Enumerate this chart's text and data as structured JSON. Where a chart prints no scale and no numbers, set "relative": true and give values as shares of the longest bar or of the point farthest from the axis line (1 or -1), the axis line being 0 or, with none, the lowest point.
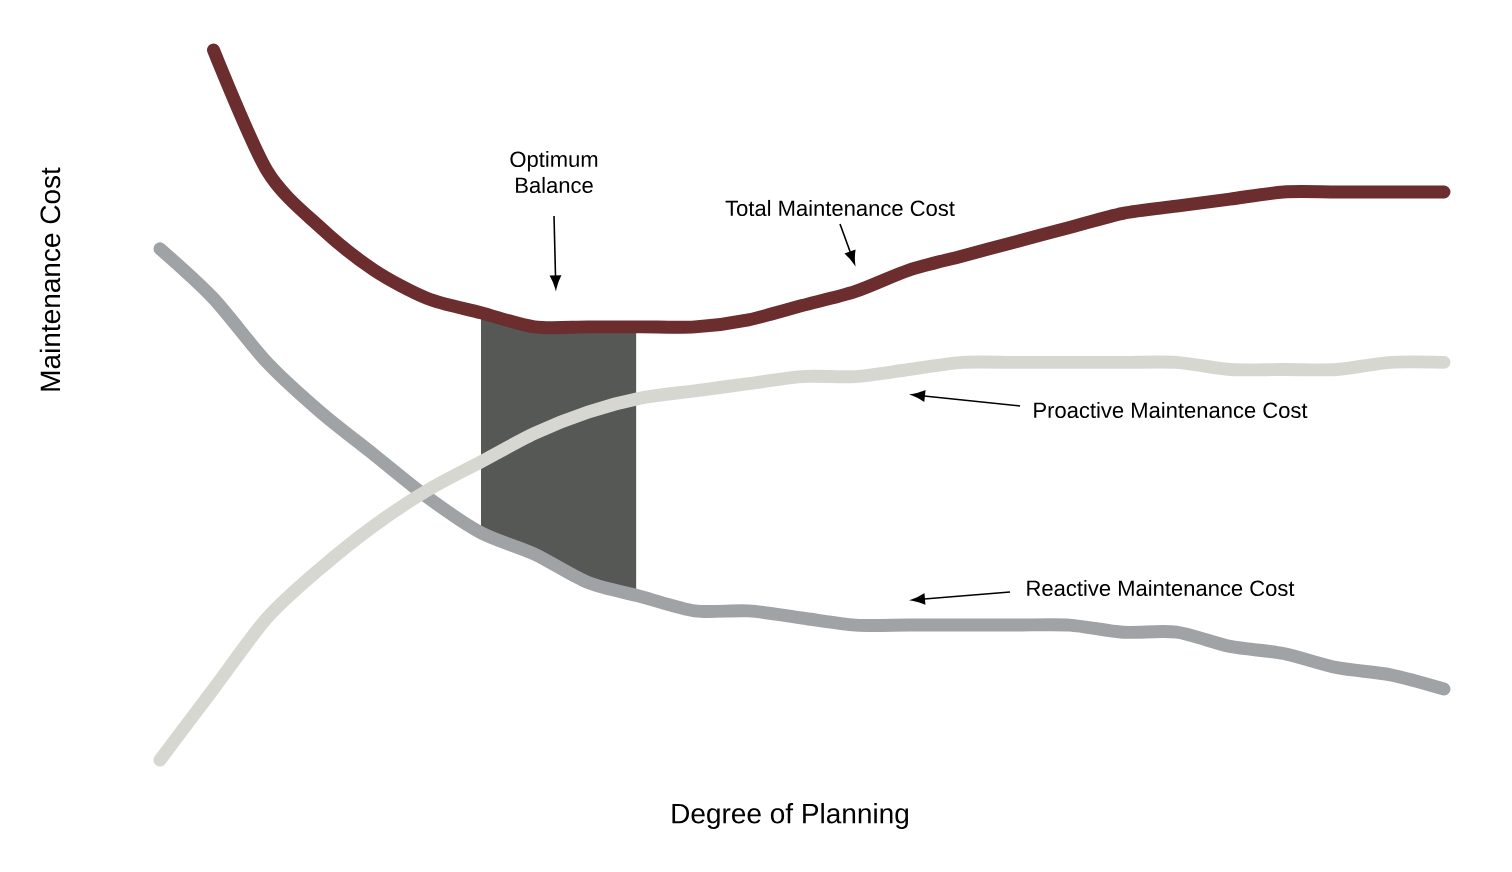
{
  "chart_data": {
    "type": "line",
    "relative": true,
    "xlabel": "Degree of Planning",
    "ylabel": "Maintenance Cost",
    "marker": "none",
    "categories": [
      null,
      null,
      null,
      null,
      null,
      null,
      null,
      null,
      null,
      null,
      null,
      null,
      null,
      null,
      null,
      null,
      null,
      null,
      null,
      null,
      null,
      null,
      null,
      null,
      null
    ],
    "series": [
      {
        "name": "Reactive Maintenance Cost",
        "color": "#a0a3a5",
        "values": [
          0.72,
          0.65,
          0.56,
          0.49,
          0.43,
          0.37,
          0.32,
          0.29,
          0.25,
          0.23,
          0.21,
          0.21,
          0.2,
          0.19,
          0.19,
          0.19,
          0.19,
          0.19,
          0.18,
          0.18,
          0.16,
          0.15,
          0.13,
          0.12,
          0.1
        ]
      },
      {
        "name": "Proactive Maintenance Cost",
        "color": "#d7d7d2",
        "values": [
          0.0,
          0.1,
          0.2,
          0.27,
          0.33,
          0.38,
          0.42,
          0.46,
          0.49,
          0.51,
          0.52,
          0.53,
          0.54,
          0.54,
          0.55,
          0.56,
          0.56,
          0.56,
          0.56,
          0.56,
          0.55,
          0.55,
          0.55,
          0.56,
          0.56
        ]
      },
      {
        "name": "Total Maintenance Cost",
        "color": "#6b2d2d",
        "values": [
          null,
          1.0,
          0.83,
          0.75,
          0.69,
          0.65,
          0.63,
          0.61,
          0.61,
          0.61,
          0.61,
          0.62,
          0.64,
          0.66,
          0.69,
          0.71,
          0.73,
          0.75,
          0.77,
          0.78,
          0.79,
          0.8,
          0.8,
          0.8,
          0.8
        ]
      }
    ],
    "annotations": [
      "Optimum Balance"
    ]
  }
}
